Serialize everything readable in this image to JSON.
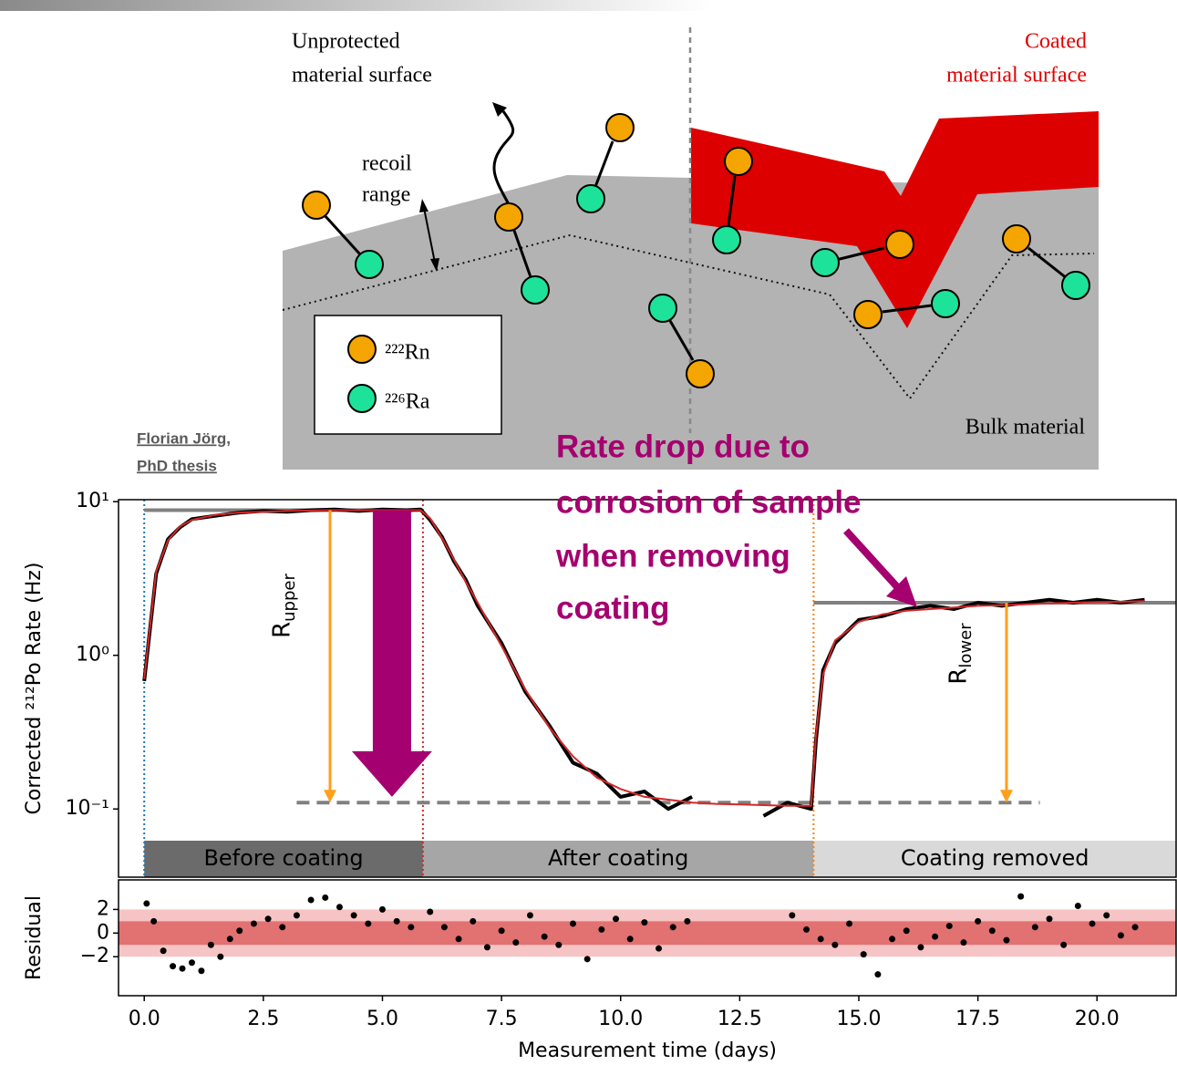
{
  "diagram": {
    "left_label": [
      "Unprotected",
      "material surface"
    ],
    "right_label": [
      "Coated",
      "material surface"
    ],
    "recoil_label": [
      "recoil",
      "range"
    ],
    "bulk_label": "Bulk material",
    "legend": [
      "²²²Rn",
      "²²⁶Ra"
    ]
  },
  "credit": [
    "Florian Jörg,",
    "PhD thesis"
  ],
  "annotation": [
    "Rate drop due to",
    "corrosion of sample",
    "when removing",
    "coating"
  ],
  "chart_data": [
    {
      "type": "line",
      "ylabel": "Corrected ²¹²Po Rate (Hz)",
      "yscale": "log",
      "xlim": [
        -0.54,
        21.66
      ],
      "ylim": [
        0.036,
        10.3
      ],
      "yticks": [
        {
          "value": 10,
          "label": "10¹"
        },
        {
          "value": 1,
          "label": "10⁰"
        },
        {
          "value": 0.1,
          "label": "10⁻¹"
        }
      ],
      "x": [
        0,
        0.25,
        0.5,
        0.75,
        1,
        1.5,
        2,
        2.5,
        3,
        3.5,
        4,
        4.5,
        5,
        5.5,
        5.8,
        6,
        6.25,
        6.5,
        6.75,
        7,
        7.5,
        8,
        8.5,
        9,
        9.5,
        10,
        10.5,
        11,
        11.5,
        12,
        12.5,
        13,
        13.5,
        14,
        14.1,
        14.25,
        14.5,
        15,
        15.5,
        16,
        16.5,
        17,
        17.5,
        18,
        18.5,
        19,
        19.5,
        20,
        20.5,
        21
      ],
      "series": [
        {
          "color": "#000000",
          "values": [
            0.68,
            3.4,
            5.7,
            6.8,
            7.7,
            8.1,
            8.5,
            8.7,
            8.6,
            8.8,
            8.9,
            8.7,
            8.9,
            8.8,
            8.9,
            7.6,
            5.9,
            4.1,
            3.1,
            2.1,
            1.2,
            0.58,
            0.35,
            0.2,
            0.17,
            0.12,
            0.13,
            0.1,
            0.12,
            null,
            null,
            0.09,
            0.11,
            0.1,
            0.28,
            0.8,
            1.2,
            1.7,
            1.8,
            2.0,
            2.1,
            2.0,
            2.2,
            2.1,
            2.2,
            2.3,
            2.2,
            2.3,
            2.2,
            2.3
          ]
        },
        {
          "color": "#d62728",
          "values": [
            0.7,
            3.5,
            5.6,
            6.9,
            7.6,
            8.2,
            8.5,
            8.6,
            8.7,
            8.75,
            8.8,
            8.8,
            8.8,
            8.8,
            8.8,
            7.8,
            5.8,
            4.2,
            3.0,
            2.2,
            1.15,
            0.6,
            0.34,
            0.22,
            0.16,
            0.135,
            0.12,
            0.115,
            0.11,
            0.108,
            0.107,
            0.106,
            0.105,
            0.105,
            0.3,
            0.75,
            1.25,
            1.65,
            1.85,
            1.95,
            2.0,
            2.05,
            2.1,
            2.12,
            2.15,
            2.18,
            2.2,
            2.22,
            2.23,
            2.25
          ]
        }
      ],
      "regions": [
        {
          "label": "Before coating",
          "range": [
            0,
            5.85
          ],
          "color": "#6b6b6b"
        },
        {
          "label": "After coating",
          "range": [
            5.85,
            14.05
          ],
          "color": "#a6a6a6"
        },
        {
          "label": "Coating removed",
          "range": [
            14.05,
            21.66
          ],
          "color": "#d9d9d9"
        }
      ],
      "markers": [
        {
          "x": 0,
          "color": "#1f77b4"
        },
        {
          "x": 5.85,
          "color": "#d62728"
        },
        {
          "x": 14.05,
          "color": "#ff7f0e"
        }
      ],
      "reference_levels": [
        {
          "value": 8.8,
          "xrange": [
            0,
            5.85
          ],
          "style": "solid"
        },
        {
          "value": 0.11,
          "xrange": [
            3.2,
            18.8
          ],
          "style": "dashed"
        },
        {
          "value": 2.2,
          "xrange": [
            14.05,
            21.66
          ],
          "style": "solid"
        }
      ],
      "arrows": [
        {
          "x": 3.9,
          "from": 8.8,
          "to": 0.11,
          "color": "#ff9f1c",
          "symbol": "R",
          "subscript": "upper"
        },
        {
          "x": 18.1,
          "from": 2.2,
          "to": 0.11,
          "color": "#ff9f1c",
          "symbol": "R",
          "subscript": "lower"
        }
      ],
      "drop_arrow": {
        "x": 5.2,
        "from": 8.8,
        "to": 0.12,
        "color": "#a5006f"
      }
    },
    {
      "type": "scatter",
      "ylabel": "Residual",
      "xlabel": "Measurement time (days)",
      "xlim": [
        -0.54,
        21.66
      ],
      "ylim": [
        -5.3,
        4.5
      ],
      "xticks": [
        {
          "value": 0,
          "label": "0.0"
        },
        2.5,
        {
          "value": 5,
          "label": "5.0"
        },
        7.5,
        {
          "value": 10,
          "label": "10.0"
        },
        12.5,
        {
          "value": 15,
          "label": "15.0"
        },
        17.5,
        {
          "value": 20,
          "label": "20.0"
        }
      ],
      "yticks": [
        2,
        0,
        {
          "value": -2,
          "label": "−2"
        }
      ],
      "bands": [
        {
          "range": [
            -2,
            2
          ],
          "color": "#f6c4c4"
        },
        {
          "range": [
            -1,
            1
          ],
          "color": "#e27272"
        }
      ],
      "color": "#000000",
      "x": [
        0.05,
        0.2,
        0.4,
        0.6,
        0.8,
        1.0,
        1.2,
        1.4,
        1.6,
        1.8,
        2.0,
        2.3,
        2.6,
        2.9,
        3.2,
        3.5,
        3.8,
        4.1,
        4.4,
        4.7,
        5.0,
        5.3,
        5.6,
        6.0,
        6.3,
        6.6,
        6.9,
        7.2,
        7.5,
        7.8,
        8.1,
        8.4,
        8.7,
        9.0,
        9.3,
        9.6,
        9.9,
        10.2,
        10.5,
        10.8,
        11.1,
        11.4,
        13.6,
        13.9,
        14.2,
        14.5,
        14.8,
        15.1,
        15.4,
        15.7,
        16.0,
        16.3,
        16.6,
        16.9,
        17.2,
        17.5,
        17.8,
        18.1,
        18.4,
        18.7,
        19.0,
        19.3,
        19.6,
        19.9,
        20.2,
        20.5,
        20.8
      ],
      "values": [
        2.5,
        1.0,
        -1.5,
        -2.8,
        -3.0,
        -2.5,
        -3.2,
        -1.0,
        -2.0,
        -0.5,
        0.2,
        0.8,
        1.2,
        0.5,
        1.5,
        2.8,
        3.0,
        2.2,
        1.5,
        0.8,
        2.0,
        1.0,
        0.5,
        1.8,
        0.5,
        -0.5,
        1.0,
        -1.2,
        0.2,
        -0.8,
        1.5,
        -0.3,
        -1.0,
        0.8,
        -2.2,
        0.3,
        1.2,
        -0.5,
        0.9,
        -1.3,
        0.5,
        1.0,
        1.5,
        0.3,
        -0.5,
        -1.0,
        0.8,
        -1.8,
        -3.5,
        -0.5,
        0.2,
        -1.2,
        -0.3,
        0.6,
        -0.8,
        1.0,
        0.2,
        -0.6,
        3.1,
        0.5,
        1.2,
        -1.0,
        2.3,
        0.8,
        1.5,
        -0.2,
        0.5
      ]
    }
  ]
}
